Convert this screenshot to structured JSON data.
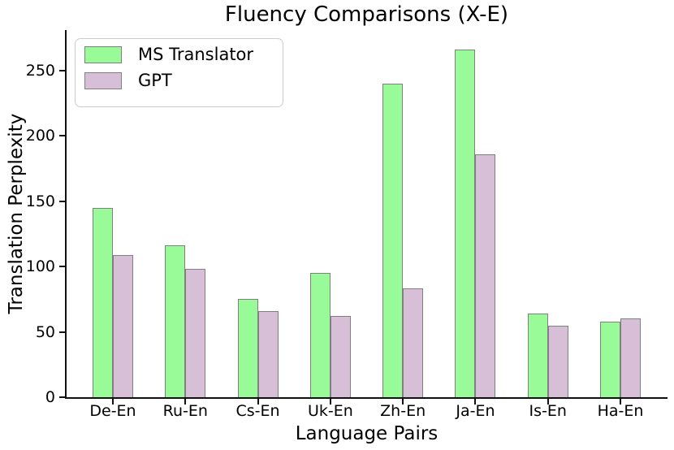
{
  "chart_data": {
    "type": "bar",
    "title": "Fluency Comparisons (X-E)",
    "xlabel": "Language Pairs",
    "ylabel": "Translation Perplexity",
    "categories": [
      "De-En",
      "Ru-En",
      "Cs-En",
      "Uk-En",
      "Zh-En",
      "Ja-En",
      "Is-En",
      "Ha-En"
    ],
    "series": [
      {
        "name": "MS Translator",
        "color": "#98FB98",
        "values": [
          145,
          116,
          75,
          95,
          240,
          266,
          64,
          58
        ]
      },
      {
        "name": "GPT",
        "color": "#D8BFD8",
        "values": [
          109,
          98,
          66,
          62,
          83,
          186,
          55,
          60
        ]
      }
    ],
    "bar_edge_color": "#808080",
    "yticks": [
      0,
      50,
      100,
      150,
      200,
      250
    ],
    "ylim": [
      0,
      281
    ],
    "grid": false,
    "legend_position": "upper left",
    "background": "#FFFFFF"
  }
}
